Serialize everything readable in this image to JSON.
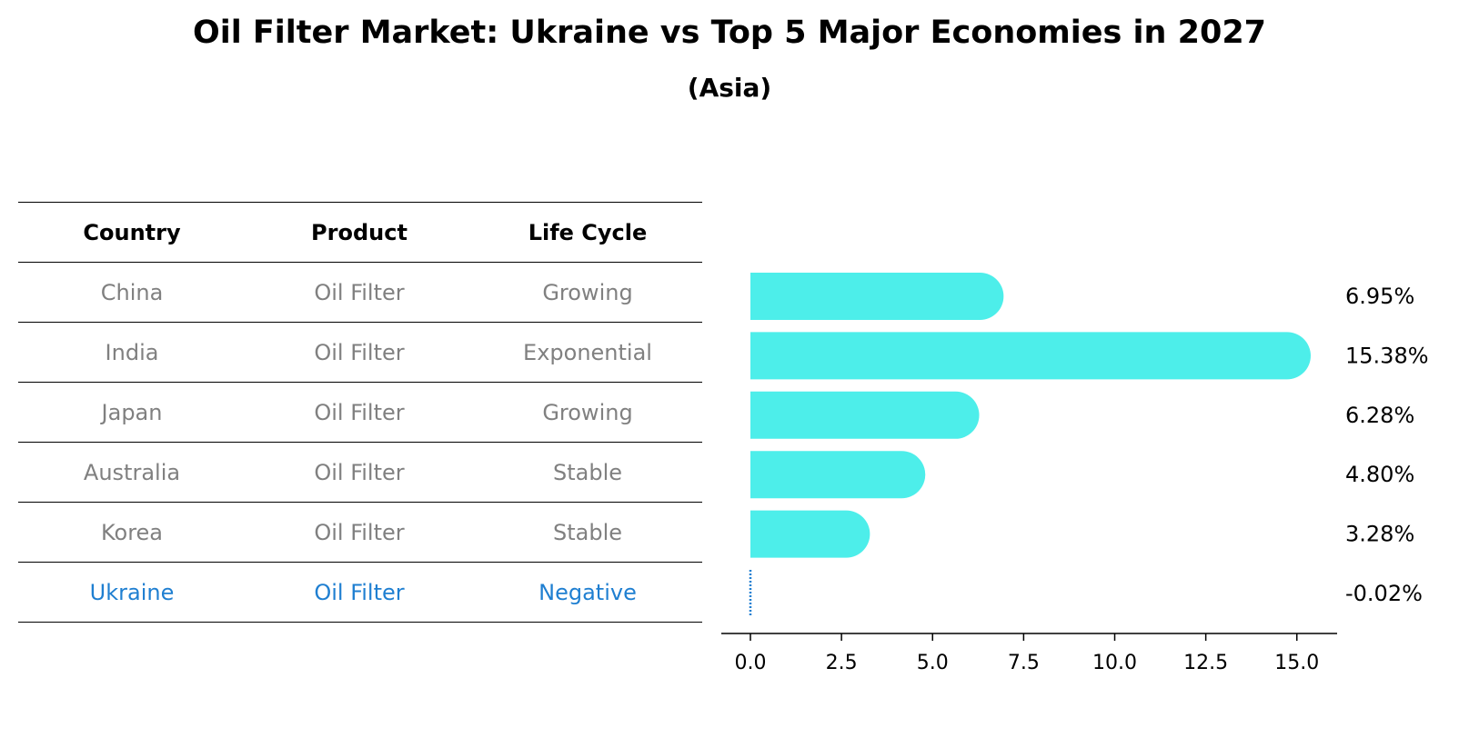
{
  "title": "Oil Filter Market: Ukraine vs Top 5 Major Economies in 2027",
  "subtitle": "(Asia)",
  "table": {
    "headers": [
      "Country",
      "Product",
      "Life Cycle"
    ],
    "rows": [
      [
        "China",
        "Oil Filter",
        "Growing"
      ],
      [
        "India",
        "Oil Filter",
        "Exponential"
      ],
      [
        "Japan",
        "Oil Filter",
        "Growing"
      ],
      [
        "Australia",
        "Oil Filter",
        "Stable"
      ],
      [
        "Korea",
        "Oil Filter",
        "Stable"
      ],
      [
        "Ukraine",
        "Oil Filter",
        "Negative"
      ]
    ]
  },
  "colors": {
    "bar": "#4deeea",
    "highlight": "#1f7fd1",
    "muted": "#808080"
  },
  "chart_data": {
    "type": "bar",
    "orientation": "horizontal",
    "categories": [
      "China",
      "India",
      "Japan",
      "Australia",
      "Korea",
      "Ukraine"
    ],
    "values": [
      6.95,
      15.38,
      6.28,
      4.8,
      3.28,
      -0.02
    ],
    "value_labels": [
      "6.95%",
      "15.38%",
      "6.28%",
      "4.80%",
      "3.28%",
      "-0.02%"
    ],
    "xlim": [
      -0.8,
      16.2
    ],
    "xticks": [
      0.0,
      2.5,
      5.0,
      7.5,
      10.0,
      12.5,
      15.0
    ],
    "xtick_labels": [
      "0.0",
      "2.5",
      "5.0",
      "7.5",
      "10.0",
      "12.5",
      "15.0"
    ],
    "highlight": "Ukraine",
    "grid": false
  }
}
